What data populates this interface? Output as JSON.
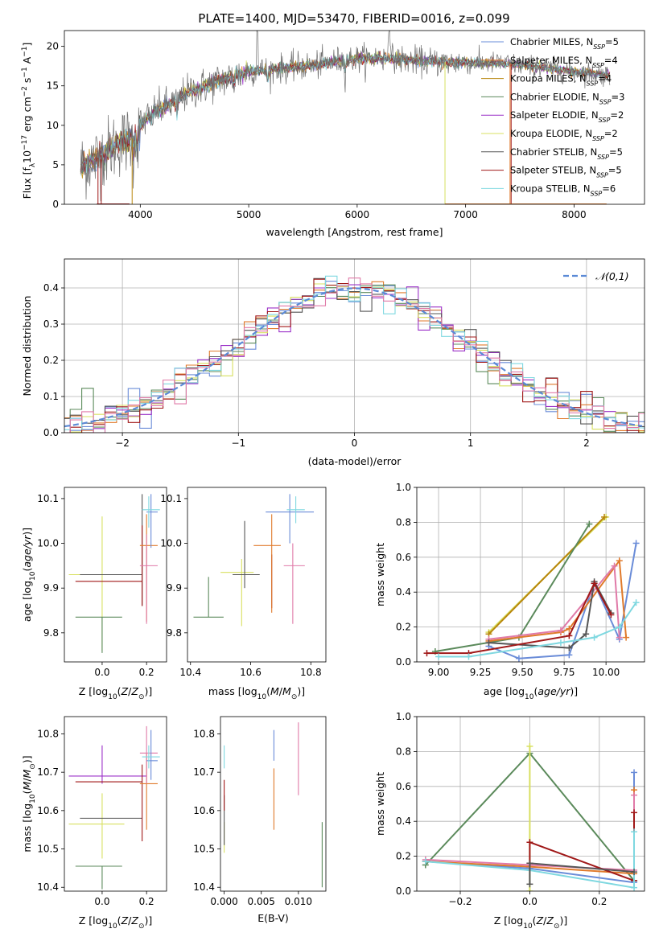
{
  "title": "PLATE=1400, MJD=53470, FIBERID=0016, z=0.099",
  "colors": {
    "Chabrier MILES": "#6A8CD8",
    "Salpeter MILES": "#E07A2B",
    "Kroupa MILES": "#B8860B",
    "Chabrier ELODIE": "#5B8A5B",
    "Salpeter ELODIE": "#9B30C8",
    "Kroupa ELODIE": "#D8E060",
    "Chabrier STELIB": "#555555",
    "Salpeter STELIB": "#A01818",
    "Kroupa STELIB": "#7FD8E0",
    "pink": "#E07AA8",
    "normal": "#5B8AD6"
  },
  "chart_data": [
    {
      "id": "spectrum",
      "type": "line",
      "xlabel": "wavelength [Angstrom, rest frame]",
      "ylabel": "Flux [f_λ 10^-17 erg cm^-2 s^-1 A^-1]",
      "xlim": [
        3300,
        8650
      ],
      "ylim": [
        0,
        22
      ],
      "xticks": [
        4000,
        5000,
        6000,
        7000,
        8000
      ],
      "yticks": [
        0,
        5,
        10,
        15,
        20
      ],
      "continuum": {
        "x": [
          3450,
          3600,
          3700,
          3800,
          3900,
          3950,
          4000,
          4100,
          4200,
          4300,
          4400,
          4500,
          4700,
          5000,
          5300,
          5600,
          5900,
          6200,
          6500,
          6800,
          7100,
          7400,
          7700,
          8000,
          8300
        ],
        "y": [
          4.8,
          5.8,
          6.8,
          7.8,
          8.2,
          8.5,
          10.0,
          11.5,
          12.2,
          12.8,
          13.8,
          14.5,
          15.5,
          16.8,
          17.2,
          17.6,
          18.3,
          18.6,
          18.2,
          18.0,
          17.9,
          17.8,
          17.3,
          16.8,
          16.4
        ]
      },
      "legend": [
        {
          "label": "Chabrier MILES, N_SSP=5",
          "color": "#6A8CD8"
        },
        {
          "label": "Salpeter MILES, N_SSP=4",
          "color": "#E07A2B"
        },
        {
          "label": "Kroupa MILES, N_SSP=4",
          "color": "#B8860B"
        },
        {
          "label": "Chabrier ELODIE, N_SSP=3",
          "color": "#5B8A5B"
        },
        {
          "label": "Salpeter ELODIE, N_SSP=2",
          "color": "#9B30C8"
        },
        {
          "label": "Kroupa ELODIE, N_SSP=2",
          "color": "#D8E060"
        },
        {
          "label": "Chabrier STELIB, N_SSP=5",
          "color": "#555555"
        },
        {
          "label": "Salpeter STELIB, N_SSP=5",
          "color": "#A01818"
        },
        {
          "label": "Kroupa STELIB, N_SSP=6",
          "color": "#7FD8E0"
        }
      ],
      "legend_items": [
        {
          "name": "Chabrier MILES",
          "sub": "SSP",
          "n": "=5"
        },
        {
          "name": "Salpeter MILES",
          "sub": "SSP",
          "n": "=4"
        },
        {
          "name": "Kroupa MILES",
          "sub": "SSP",
          "n": "=4"
        },
        {
          "name": "Chabrier ELODIE",
          "sub": "SSP",
          "n": "=3"
        },
        {
          "name": "Salpeter ELODIE",
          "sub": "SSP",
          "n": "=2"
        },
        {
          "name": "Kroupa ELODIE",
          "sub": "SSP",
          "n": "=2"
        },
        {
          "name": "Chabrier STELIB",
          "sub": "SSP",
          "n": "=5"
        },
        {
          "name": "Salpeter STELIB",
          "sub": "SSP",
          "n": "=5"
        },
        {
          "name": "Kroupa STELIB",
          "sub": "SSP",
          "n": "=6"
        }
      ],
      "legend_loc": "upper right"
    },
    {
      "id": "residuals",
      "type": "histogram",
      "xlabel": "(data-model)/error",
      "ylabel": "Normed distribution",
      "xlim": [
        -2.5,
        2.5
      ],
      "ylim": [
        0,
        0.48
      ],
      "xticks": [
        -2,
        -1,
        0,
        1,
        2
      ],
      "yticks": [
        0.0,
        0.1,
        0.2,
        0.3,
        0.4
      ],
      "bin_width": 0.1,
      "grid": true,
      "legend": [
        {
          "label": "𝒩(0,1)",
          "color": "#5B8AD6",
          "style": "dashed"
        }
      ],
      "legend_loc": "upper right"
    },
    {
      "id": "age-vs-Z",
      "type": "errorbar",
      "xlabel": "Z [log10(Z/Z☉)]",
      "ylabel": "age [log10(age/yr)]",
      "xlim": [
        -0.17,
        0.29
      ],
      "ylim": [
        9.735,
        10.125
      ],
      "xticks": [
        0.0,
        0.2
      ],
      "yticks": [
        9.8,
        9.9,
        10.0,
        10.1
      ],
      "points": [
        {
          "x": 0.0,
          "xerr": [
            0.15,
            0.1
          ],
          "y": 9.93,
          "yerr": [
            0.17,
            0.13
          ],
          "color": "#D8E060"
        },
        {
          "x": -0.02,
          "xerr": [
            0.08,
            0.2
          ],
          "y": 9.93,
          "yerr": [
            0.0,
            0.0
          ],
          "color": "#555555"
        },
        {
          "x": -0.02,
          "xerr": [
            0.1,
            0.2
          ],
          "y": 9.915,
          "yerr": [
            0.0,
            0.0
          ],
          "color": "#A01818"
        },
        {
          "x": 0.0,
          "xerr": [
            0.12,
            0.09
          ],
          "y": 9.835,
          "yerr": [
            0.08,
            0.0
          ],
          "color": "#5B8A5B"
        },
        {
          "x": 0.18,
          "xerr": [
            0.0,
            0.0
          ],
          "y": 9.95,
          "yerr": [
            0.09,
            0.16
          ],
          "color": "#555555"
        },
        {
          "x": 0.18,
          "xerr": [
            0.0,
            0.0
          ],
          "y": 9.95,
          "yerr": [
            0.09,
            0.09
          ],
          "color": "#A01818"
        },
        {
          "x": 0.2,
          "xerr": [
            0.03,
            0.05
          ],
          "y": 9.995,
          "yerr": [
            0.17,
            0.07
          ],
          "color": "#E07A2B"
        },
        {
          "x": 0.2,
          "xerr": [
            0.03,
            0.05
          ],
          "y": 9.95,
          "yerr": [
            0.13,
            0.07
          ],
          "color": "#E07AA8"
        },
        {
          "x": 0.22,
          "xerr": [
            0.02,
            0.03
          ],
          "y": 10.07,
          "yerr": [
            0.08,
            0.04
          ],
          "color": "#6A8CD8"
        },
        {
          "x": 0.21,
          "xerr": [
            0.03,
            0.05
          ],
          "y": 10.075,
          "yerr": [
            0.04,
            0.03
          ],
          "color": "#7FD8E0"
        }
      ]
    },
    {
      "id": "age-vs-mass",
      "type": "errorbar",
      "xlabel": "mass [log10(M/M☉)]",
      "ylabel": "",
      "xlim": [
        10.39,
        10.85
      ],
      "ylim": [
        9.735,
        10.125
      ],
      "xticks": [
        10.4,
        10.6,
        10.8
      ],
      "yticks": [
        9.8,
        9.9,
        10.0,
        10.1
      ],
      "points": [
        {
          "x": 10.57,
          "xerr": [
            0.07,
            0.04
          ],
          "y": 9.935,
          "yerr": [
            0.12,
            0.03
          ],
          "color": "#D8E060"
        },
        {
          "x": 10.58,
          "xerr": [
            0.04,
            0.05
          ],
          "y": 9.93,
          "yerr": [
            0.03,
            0.12
          ],
          "color": "#555555"
        },
        {
          "x": 10.67,
          "xerr": [
            0.0,
            0.0
          ],
          "y": 9.915,
          "yerr": [
            0.06,
            0.06
          ],
          "color": "#A01818"
        },
        {
          "x": 10.46,
          "xerr": [
            0.05,
            0.05
          ],
          "y": 9.835,
          "yerr": [
            0.0,
            0.09
          ],
          "color": "#5B8A5B"
        },
        {
          "x": 10.67,
          "xerr": [
            0.06,
            0.03
          ],
          "y": 9.995,
          "yerr": [
            0.15,
            0.07
          ],
          "color": "#E07A2B"
        },
        {
          "x": 10.74,
          "xerr": [
            0.03,
            0.04
          ],
          "y": 9.95,
          "yerr": [
            0.13,
            0.05
          ],
          "color": "#E07AA8"
        },
        {
          "x": 10.73,
          "xerr": [
            0.08,
            0.08
          ],
          "y": 10.07,
          "yerr": [
            0.07,
            0.04
          ],
          "color": "#6A8CD8"
        },
        {
          "x": 10.75,
          "xerr": [
            0.03,
            0.03
          ],
          "y": 10.075,
          "yerr": [
            0.03,
            0.03
          ],
          "color": "#7FD8E0"
        }
      ]
    },
    {
      "id": "weight-vs-age",
      "type": "line",
      "xlabel": "age [log10(age/yr)]",
      "ylabel": "mass weight",
      "xlim": [
        8.87,
        10.23
      ],
      "ylim": [
        0,
        1.0
      ],
      "xticks": [
        9.0,
        9.25,
        9.5,
        9.75,
        10.0
      ],
      "yticks": [
        0.0,
        0.2,
        0.4,
        0.6,
        0.8,
        1.0
      ],
      "grid": true,
      "series": [
        {
          "color": "#D8E060",
          "x": [
            9.3,
            10.0
          ],
          "y": [
            0.17,
            0.83
          ]
        },
        {
          "color": "#B8860B",
          "x": [
            9.3,
            9.99
          ],
          "y": [
            0.16,
            0.83
          ]
        },
        {
          "color": "#5B8A5B",
          "x": [
            8.98,
            9.48,
            9.9
          ],
          "y": [
            0.06,
            0.14,
            0.79
          ]
        },
        {
          "color": "#6A8CD8",
          "x": [
            9.3,
            9.48,
            9.78,
            9.93,
            10.08,
            10.18
          ],
          "y": [
            0.09,
            0.02,
            0.04,
            0.45,
            0.13,
            0.68
          ]
        },
        {
          "color": "#E07A2B",
          "x": [
            9.3,
            9.73,
            9.78,
            10.08,
            10.12
          ],
          "y": [
            0.12,
            0.17,
            0.19,
            0.58,
            0.14
          ]
        },
        {
          "color": "#E07AA8",
          "x": [
            9.3,
            9.73,
            10.05,
            10.08
          ],
          "y": [
            0.13,
            0.18,
            0.55,
            0.14
          ]
        },
        {
          "color": "#555555",
          "x": [
            9.3,
            9.78,
            9.88,
            9.93,
            10.03
          ],
          "y": [
            0.11,
            0.08,
            0.16,
            0.46,
            0.28
          ]
        },
        {
          "color": "#A01818",
          "x": [
            8.93,
            9.18,
            9.78,
            9.93,
            10.03
          ],
          "y": [
            0.05,
            0.05,
            0.15,
            0.45,
            0.27
          ]
        },
        {
          "color": "#7FD8E0",
          "x": [
            9.0,
            9.18,
            9.73,
            9.93,
            10.08,
            10.18
          ],
          "y": [
            0.03,
            0.03,
            0.11,
            0.14,
            0.2,
            0.34
          ]
        }
      ]
    },
    {
      "id": "mass-vs-Z",
      "type": "errorbar",
      "xlabel": "Z [log10(Z/Z☉)]",
      "ylabel": "mass [log10(M/M☉)]",
      "xlim": [
        -0.17,
        0.29
      ],
      "ylim": [
        10.39,
        10.845
      ],
      "xticks": [
        0.0,
        0.2
      ],
      "yticks": [
        10.4,
        10.5,
        10.6,
        10.7,
        10.8
      ],
      "points": [
        {
          "x": 0.0,
          "xerr": [
            0.15,
            0.1
          ],
          "y": 10.565,
          "yerr": [
            0.09,
            0.08
          ],
          "color": "#D8E060"
        },
        {
          "x": 0.0,
          "xerr": [
            0.15,
            0.2
          ],
          "y": 10.69,
          "yerr": [
            0.02,
            0.08
          ],
          "color": "#9B30C8"
        },
        {
          "x": -0.02,
          "xerr": [
            0.08,
            0.2
          ],
          "y": 10.58,
          "yerr": [
            0.0,
            0.0
          ],
          "color": "#555555"
        },
        {
          "x": -0.02,
          "xerr": [
            0.1,
            0.2
          ],
          "y": 10.675,
          "yerr": [
            0.0,
            0.0
          ],
          "color": "#A01818"
        },
        {
          "x": 0.0,
          "xerr": [
            0.12,
            0.09
          ],
          "y": 10.455,
          "yerr": [
            0.06,
            0.0
          ],
          "color": "#5B8A5B"
        },
        {
          "x": 0.18,
          "xerr": [
            0.0,
            0.0
          ],
          "y": 10.66,
          "yerr": [
            0.14,
            0.06
          ],
          "color": "#A01818"
        },
        {
          "x": 0.2,
          "xerr": [
            0.03,
            0.05
          ],
          "y": 10.67,
          "yerr": [
            0.12,
            0.08
          ],
          "color": "#E07A2B"
        },
        {
          "x": 0.2,
          "xerr": [
            0.03,
            0.05
          ],
          "y": 10.75,
          "yerr": [
            0.08,
            0.07
          ],
          "color": "#E07AA8"
        },
        {
          "x": 0.22,
          "xerr": [
            0.02,
            0.03
          ],
          "y": 10.73,
          "yerr": [
            0.05,
            0.08
          ],
          "color": "#6A8CD8"
        },
        {
          "x": 0.21,
          "xerr": [
            0.03,
            0.05
          ],
          "y": 10.74,
          "yerr": [
            0.03,
            0.03
          ],
          "color": "#7FD8E0"
        }
      ]
    },
    {
      "id": "mass-vs-EBV",
      "type": "errorbar",
      "xlabel": "E(B-V)",
      "ylabel": "",
      "xlim": [
        -0.0005,
        0.0137
      ],
      "ylim": [
        10.39,
        10.845
      ],
      "xticks": [
        0.0,
        0.005,
        0.01
      ],
      "xticklabels": [
        "0.000",
        "0.005",
        "0.010"
      ],
      "yticks": [
        10.4,
        10.5,
        10.6,
        10.7,
        10.8
      ],
      "points": [
        {
          "x": 0.0,
          "xerr": [
            0.0,
            0.0
          ],
          "y": 10.52,
          "yerr": [
            0.03,
            0.05
          ],
          "color": "#D8E060"
        },
        {
          "x": 0.0,
          "xerr": [
            0.0,
            0.0
          ],
          "y": 10.58,
          "yerr": [
            0.07,
            0.06
          ],
          "color": "#555555"
        },
        {
          "x": 0.0,
          "xerr": [
            0.0,
            0.0
          ],
          "y": 10.64,
          "yerr": [
            0.04,
            0.04
          ],
          "color": "#A01818"
        },
        {
          "x": 0.0,
          "xerr": [
            0.0,
            0.0
          ],
          "y": 10.73,
          "yerr": [
            0.02,
            0.04
          ],
          "color": "#7FD8E0"
        },
        {
          "x": 0.0067,
          "xerr": [
            0.0,
            0.0
          ],
          "y": 10.64,
          "yerr": [
            0.09,
            0.07
          ],
          "color": "#E07A2B"
        },
        {
          "x": 0.0067,
          "xerr": [
            0.0,
            0.0
          ],
          "y": 10.76,
          "yerr": [
            0.03,
            0.05
          ],
          "color": "#6A8CD8"
        },
        {
          "x": 0.01,
          "xerr": [
            0.0,
            0.0
          ],
          "y": 10.75,
          "yerr": [
            0.11,
            0.08
          ],
          "color": "#E07AA8"
        },
        {
          "x": 0.0132,
          "xerr": [
            0.0,
            0.0
          ],
          "y": 10.49,
          "yerr": [
            0.09,
            0.08
          ],
          "color": "#5B8A5B"
        }
      ]
    },
    {
      "id": "weight-vs-Z",
      "type": "line",
      "xlabel": "Z [log10(Z/Z☉)]",
      "ylabel": "mass weight",
      "xlim": [
        -0.325,
        0.33
      ],
      "ylim": [
        0,
        1.0
      ],
      "xticks": [
        -0.2,
        0.0,
        0.2
      ],
      "yticks": [
        0.0,
        0.2,
        0.4,
        0.6,
        0.8,
        1.0
      ],
      "grid": true,
      "series": [
        {
          "color": "#5B8A5B",
          "x": [
            -0.3,
            0.0,
            0.3
          ],
          "y": [
            0.15,
            0.79,
            0.06
          ]
        },
        {
          "color": "#D8E060",
          "x": [
            0.0,
            0.0
          ],
          "y": [
            0.0,
            0.83
          ]
        },
        {
          "color": "#6A8CD8",
          "x": [
            -0.3,
            0.0,
            0.3,
            0.3
          ],
          "y": [
            0.17,
            0.13,
            0.05,
            0.68
          ]
        },
        {
          "color": "#E07A2B",
          "x": [
            -0.3,
            0.0,
            0.3,
            0.3
          ],
          "y": [
            0.17,
            0.14,
            0.1,
            0.58
          ]
        },
        {
          "color": "#E07AA8",
          "x": [
            -0.3,
            0.0,
            0.3,
            0.3
          ],
          "y": [
            0.18,
            0.15,
            0.12,
            0.55
          ]
        },
        {
          "color": "#A01818",
          "x": [
            0.0,
            0.0,
            0.3,
            0.3
          ],
          "y": [
            0.16,
            0.28,
            0.06,
            0.45
          ]
        },
        {
          "color": "#7FD8E0",
          "x": [
            -0.3,
            0.0,
            0.3,
            0.3
          ],
          "y": [
            0.17,
            0.12,
            0.02,
            0.34
          ]
        },
        {
          "color": "#555555",
          "x": [
            0.0,
            0.0,
            0.3
          ],
          "y": [
            0.04,
            0.16,
            0.11
          ]
        }
      ]
    }
  ]
}
